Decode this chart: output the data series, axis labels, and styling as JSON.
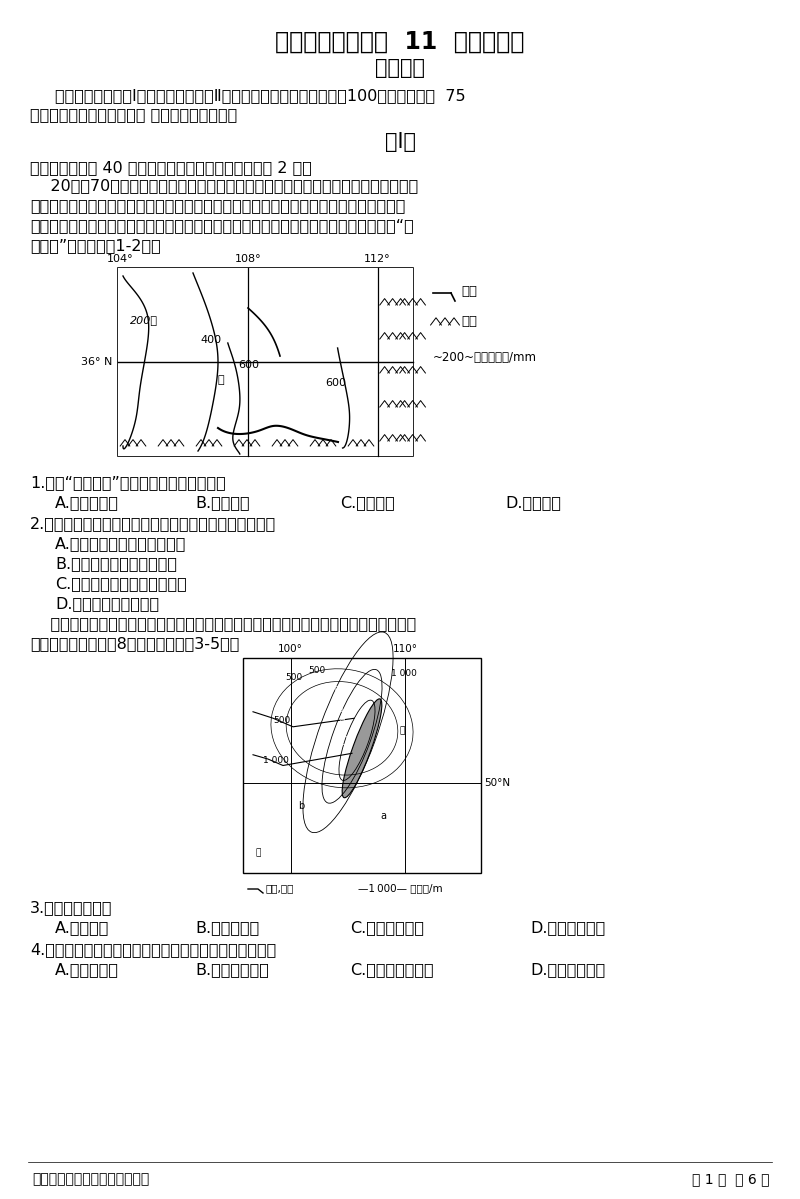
{
  "title1": "兰州一中高三年级  11  月月考试卷",
  "title2": "高三地理",
  "instructions_line1": "说明：本试卷分第Ⅰ卷（选择题）和第Ⅱ卷（非选择题）两部分。满分100分，考试时间  75",
  "instructions_line2": "分钟。答案写在答题卡上， 交卷时只交答题卡。",
  "section1": "第Ⅰ卷",
  "section1_header": "一、选择题（共 40 分，每题只有一个正确答案，每题 2 分）",
  "para1_l1": "    20世纪70年代以来，我国对下图所示区域的水土流失进行了大规模治理，重点实施",
  "para1_l2": "了退耕还林（草）等生物治理措施。但是出现了甲地区的林草植被得到较好恢复；乙地区",
  "para1_l3": "的人工连片种植的树木普遍生长不良，树干弯曲，根基不稳，枝叶稀疏，被当地人称为“小",
  "para1_l4": "老头树”。据此完成1-2题。",
  "q1": "1.这种“小老头树”反映了当地的气候特点是",
  "q1a": "A.昼夜温差大",
  "q1b": "B.降水量少",
  "q1c": "C.热量不足",
  "q1d": "D.土质疏松",
  "q2": "2.乙区域连片种植树木会影响当地生态环境，不正确的是",
  "q2a": "A.导致该地区水土流失更严重",
  "q2b": "B.影响林下草本植物的生长",
  "q2c": "C.不利于当地自然植被的恢复",
  "q2d": "D.导致区域环境更干燥",
  "para2_l1": "    贝加尔湖（下图图示）是世界上最深的湖泊，监测表明湖水深度还在加大。贝加尔湖湖",
  "para2_l2": "底沉积物巨厚，可达8千米。据此完成3-5题。",
  "q3": "3.贝加尔湖形成于",
  "q3a": "A.河流改道",
  "q3b": "B.火山口集水",
  "q3c": "C.地壳断陷集水",
  "q3d": "D.滑坡阻断河流",
  "q4": "4.贝加尔湖湖底沉积物巨厚，且湖水深度还在加大，说明",
  "q4a": "A.湖盆在加深",
  "q4b": "B.入湖径流增多",
  "q4c": "C.湖区降水量加大",
  "q4d": "D.入湖泥沙增多",
  "footer_left": "兰州一中高三年级诊断考试试卷",
  "footer_right": "第 1 页  共 6 页",
  "bg_color": "#ffffff",
  "text_color": "#000000"
}
